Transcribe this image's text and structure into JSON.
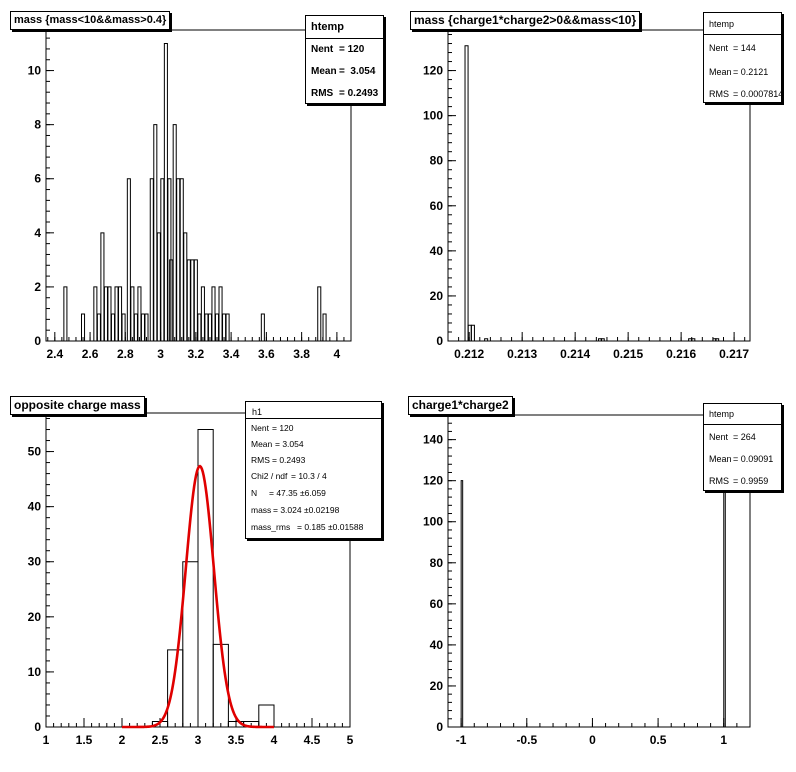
{
  "chart_data": [
    {
      "type": "bar",
      "histogram": true,
      "title": "mass {mass<10&&mass>0.4}",
      "xlim": [
        2.35,
        4.08
      ],
      "ylim": [
        0,
        11.5
      ],
      "xticks": [
        "2.4",
        "2.6",
        "2.8",
        "3",
        "3.2",
        "3.4",
        "3.6",
        "3.8",
        "4"
      ],
      "yticks": [
        "0",
        "2",
        "4",
        "6",
        "8",
        "10"
      ],
      "bin_width": 0.0173,
      "bin_centers": [
        2.46,
        2.56,
        2.63,
        2.65,
        2.67,
        2.69,
        2.71,
        2.73,
        2.75,
        2.77,
        2.79,
        2.82,
        2.84,
        2.86,
        2.88,
        2.9,
        2.92,
        2.95,
        2.97,
        2.99,
        3.01,
        3.03,
        3.05,
        3.06,
        3.08,
        3.1,
        3.12,
        3.14,
        3.16,
        3.18,
        3.2,
        3.22,
        3.24,
        3.26,
        3.28,
        3.3,
        3.32,
        3.34,
        3.36,
        3.38,
        3.58,
        3.9,
        3.93
      ],
      "values": [
        2,
        1,
        2,
        1,
        4,
        2,
        2,
        1,
        2,
        2,
        1,
        6,
        2,
        1,
        2,
        1,
        1,
        6,
        8,
        4,
        6,
        11,
        6,
        3,
        8,
        6,
        6,
        4,
        3,
        3,
        3,
        1,
        2,
        1,
        1,
        2,
        1,
        2,
        1,
        1,
        1,
        2,
        1
      ],
      "stats": {
        "name": "htemp",
        "entries": "120",
        "mean": "3.054",
        "rms": "0.2493"
      }
    },
    {
      "type": "bar",
      "histogram": true,
      "title": "mass {charge1*charge2>0&&mass<10}",
      "xlim": [
        0.2116,
        0.2173
      ],
      "ylim": [
        0,
        138
      ],
      "xticks": [
        "0.212",
        "0.213",
        "0.214",
        "0.215",
        "0.216",
        "0.217"
      ],
      "yticks": [
        "0",
        "20",
        "40",
        "60",
        "80",
        "100",
        "120"
      ],
      "bin_width": 5.75e-05,
      "bin_centers": [
        0.21195,
        0.21201,
        0.21207,
        0.21232,
        0.21447,
        0.21452,
        0.21617,
        0.21623,
        0.21663,
        0.21668
      ],
      "values": [
        131,
        7,
        7,
        1,
        1,
        1,
        1,
        1,
        1,
        1
      ],
      "stats": {
        "name": "htemp",
        "entries": "144",
        "mean": "0.2121",
        "rms": "0.0007814"
      }
    },
    {
      "type": "bar",
      "histogram": true,
      "title": "opposite charge mass",
      "xlim": [
        1,
        5
      ],
      "ylim": [
        0,
        57
      ],
      "xticks": [
        "1",
        "1.5",
        "2",
        "2.5",
        "3",
        "3.5",
        "4",
        "4.5",
        "5"
      ],
      "yticks": [
        "0",
        "10",
        "20",
        "30",
        "40",
        "50"
      ],
      "bin_width": 0.2,
      "bin_centers": [
        2.5,
        2.7,
        2.9,
        3.1,
        3.3,
        3.5,
        3.7,
        3.9
      ],
      "values": [
        1,
        14,
        30,
        54,
        15,
        1,
        1,
        4
      ],
      "fit": {
        "type": "gaussian",
        "amplitude": 47.35,
        "mean": 3.024,
        "sigma": 0.185,
        "x_range": [
          2.0,
          4.0
        ],
        "color": "#e00000"
      },
      "stats": {
        "name": "h1",
        "rows": [
          {
            "label": "Nent",
            "value": "= 120"
          },
          {
            "label": "Mean",
            "value": "= 3.054"
          },
          {
            "label": "RMS",
            "value": "= 0.2493"
          },
          {
            "label": "Chi2 / ndf",
            "value": "= 10.3 / 4"
          },
          {
            "label": "N",
            "value": "= 47.35    ±6.059"
          },
          {
            "label": "mass",
            "value": "= 3.024    ±0.02198"
          },
          {
            "label": "mass_rms",
            "value": "= 0.185    ±0.01588"
          }
        ]
      }
    },
    {
      "type": "bar",
      "histogram": true,
      "title": "charge1*charge2",
      "xlim": [
        -1.1,
        1.2
      ],
      "ylim": [
        0,
        152
      ],
      "xticks": [
        "-1",
        "-0.5",
        "0",
        "0.5",
        "1"
      ],
      "yticks": [
        "0",
        "20",
        "40",
        "60",
        "80",
        "100",
        "120",
        "140"
      ],
      "bin_width": 0.0115,
      "bin_centers": [
        -0.994,
        1.006
      ],
      "values": [
        120,
        144
      ],
      "stats": {
        "name": "htemp",
        "entries": "264",
        "mean": "0.09091",
        "rms": "0.9959"
      }
    }
  ]
}
